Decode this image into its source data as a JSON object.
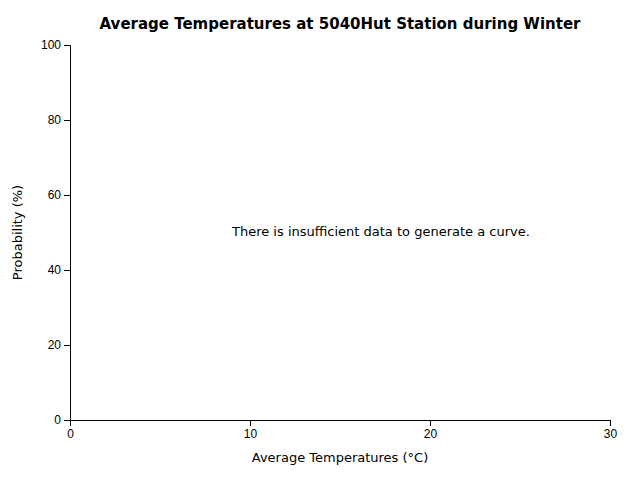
{
  "chart_data": {
    "type": "line",
    "title": "Average Temperatures at 5040Hut Station during Winter",
    "xlabel": "Average Temperatures (°C)",
    "ylabel": "Probability (%)",
    "xlim": [
      0,
      30
    ],
    "ylim": [
      0,
      100
    ],
    "xticks": [
      0,
      10,
      20,
      30
    ],
    "yticks": [
      0,
      20,
      40,
      60,
      80,
      100
    ],
    "grid": false,
    "annotations": [
      "There is insufficient data to generate a curve."
    ]
  }
}
